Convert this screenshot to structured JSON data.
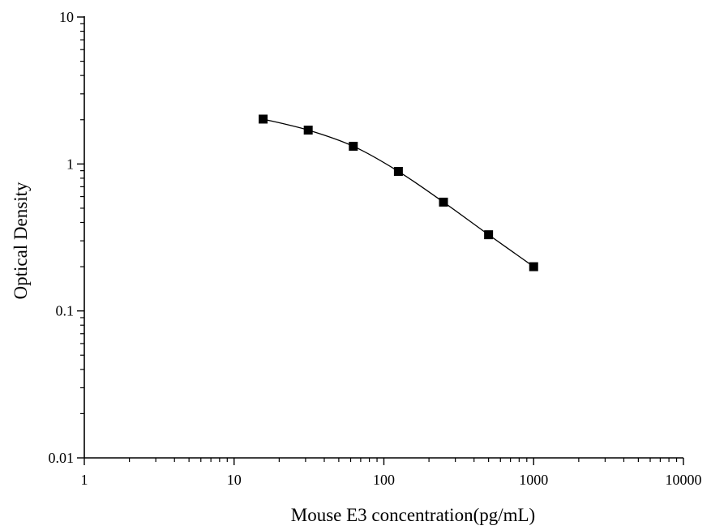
{
  "chart_data": {
    "type": "scatter",
    "title": "",
    "xlabel": "Mouse E3 concentration(pg/mL)",
    "ylabel": "Optical Density",
    "x_scale": "log",
    "y_scale": "log",
    "xlim": [
      1,
      10000
    ],
    "ylim": [
      0.01,
      10
    ],
    "x_ticks": [
      {
        "value": 1,
        "label": "1"
      },
      {
        "value": 10,
        "label": "10"
      },
      {
        "value": 100,
        "label": "100"
      },
      {
        "value": 1000,
        "label": "1000"
      },
      {
        "value": 10000,
        "label": "10000"
      }
    ],
    "y_ticks": [
      {
        "value": 0.01,
        "label": "0.01"
      },
      {
        "value": 0.1,
        "label": "0.1"
      },
      {
        "value": 1,
        "label": "1"
      },
      {
        "value": 10,
        "label": "10"
      }
    ],
    "grid": false,
    "legend": "none",
    "series": [
      {
        "marker": "square",
        "line": "smooth",
        "color": "#000000",
        "points": [
          {
            "x": 15.63,
            "y": 2.02
          },
          {
            "x": 31.25,
            "y": 1.7
          },
          {
            "x": 62.5,
            "y": 1.32
          },
          {
            "x": 125,
            "y": 0.89
          },
          {
            "x": 250,
            "y": 0.55
          },
          {
            "x": 500,
            "y": 0.33
          },
          {
            "x": 1000,
            "y": 0.2
          }
        ]
      }
    ]
  }
}
